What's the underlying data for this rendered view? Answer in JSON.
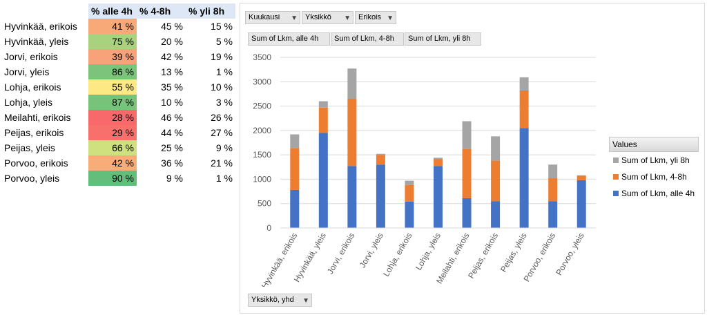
{
  "table": {
    "headers": [
      "% alle 4h",
      "% 4-8h",
      "% yli 8h"
    ],
    "rows": [
      {
        "label": "Hyvinkää, erikois",
        "a": "41 %",
        "b": "45 %",
        "c": "15 %",
        "color": "#f8a978"
      },
      {
        "label": "Hyvinkää, yleis",
        "a": "75 %",
        "b": "20 %",
        "c": "5 %",
        "color": "#a9d27f"
      },
      {
        "label": "Jorvi, erikois",
        "a": "39 %",
        "b": "42 %",
        "c": "19 %",
        "color": "#f8a279"
      },
      {
        "label": "Jorvi, yleis",
        "a": "86 %",
        "b": "13 %",
        "c": "1 %",
        "color": "#7cc47c"
      },
      {
        "label": "Lohja, erikois",
        "a": "55 %",
        "b": "35 %",
        "c": "10 %",
        "color": "#fde983"
      },
      {
        "label": "Lohja, yleis",
        "a": "87 %",
        "b": "10 %",
        "c": "3 %",
        "color": "#78c27a"
      },
      {
        "label": "Meilahti, erikois",
        "a": "28 %",
        "b": "46 %",
        "c": "26 %",
        "color": "#f8696b"
      },
      {
        "label": "Peijas, erikois",
        "a": "29 %",
        "b": "44 %",
        "c": "27 %",
        "color": "#f8706c"
      },
      {
        "label": "Peijas, yleis",
        "a": "66 %",
        "b": "25 %",
        "c": "9 %",
        "color": "#cfe07f"
      },
      {
        "label": "Porvoo, erikois",
        "a": "42 %",
        "b": "36 %",
        "c": "21 %",
        "color": "#f9ac78"
      },
      {
        "label": "Porvoo, yleis",
        "a": "90 %",
        "b": "9 %",
        "c": "1 %",
        "color": "#63be7b"
      }
    ]
  },
  "pivot": {
    "filters": [
      "Kuukausi",
      "Yksikkö",
      "Erikois"
    ],
    "axis_field": "Yksikkö, yhd"
  },
  "chart_data": {
    "type": "bar",
    "stacked": true,
    "categories": [
      "Hyvinkää, erikois",
      "Hyvinkää, yleis",
      "Jorvi, erikois",
      "Jorvi, yleis",
      "Lohja, erikois",
      "Lohja, yleis",
      "Meilahti, erikois",
      "Peijas, erikois",
      "Peijas, yleis",
      "Porvoo, erikois",
      "Porvoo, yleis"
    ],
    "series": [
      {
        "name": "Sum of Lkm, alle 4h",
        "color": "#4472c4",
        "values": [
          780,
          1950,
          1270,
          1300,
          540,
          1270,
          610,
          550,
          2050,
          550,
          980
        ]
      },
      {
        "name": "Sum of Lkm, 4-8h",
        "color": "#ed7d31",
        "values": [
          860,
          520,
          1380,
          200,
          340,
          140,
          1010,
          830,
          770,
          470,
          90
        ]
      },
      {
        "name": "Sum of Lkm, yli 8h",
        "color": "#a5a5a5",
        "values": [
          280,
          130,
          620,
          20,
          90,
          30,
          570,
          500,
          270,
          280,
          10
        ]
      }
    ],
    "ylim": [
      0,
      3500
    ],
    "yticks": [
      0,
      500,
      1000,
      1500,
      2000,
      2500,
      3000,
      3500
    ],
    "grid": true,
    "legend_title": "Values",
    "legend_placement": "right",
    "legend_order": [
      2,
      1,
      0
    ],
    "series_buttons": [
      "Sum of Lkm,  alle 4h",
      "Sum of Lkm,  4-8h",
      "Sum of Lkm,  yli 8h"
    ]
  }
}
